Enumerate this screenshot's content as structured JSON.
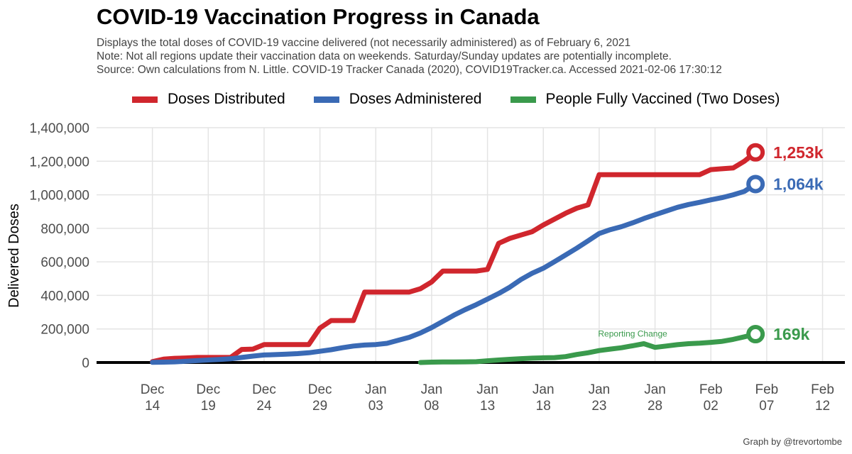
{
  "header": {
    "title": "COVID-19 Vaccination Progress in Canada",
    "subtitle_lines": [
      "Displays the total doses of COVID-19 vaccine delivered (not necessarily administered) as of February 6, 2021",
      "Note: Not all regions update their vaccination data on weekends. Saturday/Sunday updates are potentially incomplete.",
      "Source: Own calculations from N. Little. COVID-19 Tracker Canada (2020), COVID19Tracker.ca. Accessed  2021-02-06 17:30:12"
    ]
  },
  "credit": "Graph by @trevortombe",
  "colors": {
    "distributed": "#d0262d",
    "administered": "#3a6ab5",
    "fully": "#3a9a4c",
    "annotation": "#3a9a4c",
    "grid": "#e4e4e4",
    "axis_text": "#4d4d4d"
  },
  "chart_data": {
    "type": "line",
    "ylabel": "Delivered Doses",
    "ylim": [
      0,
      1400000
    ],
    "yticks": [
      0,
      200000,
      400000,
      600000,
      800000,
      1000000,
      1200000,
      1400000
    ],
    "ytick_labels": [
      "0",
      "200,000",
      "400,000",
      "600,000",
      "800,000",
      "1,000,000",
      "1,200,000",
      "1,400,000"
    ],
    "xticks": [
      {
        "date": "2020-12-14",
        "label": [
          "Dec",
          "14"
        ]
      },
      {
        "date": "2020-12-19",
        "label": [
          "Dec",
          "19"
        ]
      },
      {
        "date": "2020-12-24",
        "label": [
          "Dec",
          "24"
        ]
      },
      {
        "date": "2020-12-29",
        "label": [
          "Dec",
          "29"
        ]
      },
      {
        "date": "2021-01-03",
        "label": [
          "Jan",
          "03"
        ]
      },
      {
        "date": "2021-01-08",
        "label": [
          "Jan",
          "08"
        ]
      },
      {
        "date": "2021-01-13",
        "label": [
          "Jan",
          "13"
        ]
      },
      {
        "date": "2021-01-18",
        "label": [
          "Jan",
          "18"
        ]
      },
      {
        "date": "2021-01-23",
        "label": [
          "Jan",
          "23"
        ]
      },
      {
        "date": "2021-01-28",
        "label": [
          "Jan",
          "28"
        ]
      },
      {
        "date": "2021-02-02",
        "label": [
          "Feb",
          "02"
        ]
      },
      {
        "date": "2021-02-07",
        "label": [
          "Feb",
          "07"
        ]
      },
      {
        "date": "2021-02-12",
        "label": [
          "Feb",
          "12"
        ]
      }
    ],
    "xlim": [
      "2020-12-09",
      "2021-02-14"
    ],
    "legend_position": "top",
    "series": [
      {
        "key": "distributed",
        "name": "Doses Distributed",
        "end_label": "1,253k",
        "x": [
          "2020-12-14",
          "2020-12-15",
          "2020-12-16",
          "2020-12-17",
          "2020-12-18",
          "2020-12-19",
          "2020-12-20",
          "2020-12-21",
          "2020-12-22",
          "2020-12-23",
          "2020-12-24",
          "2020-12-25",
          "2020-12-26",
          "2020-12-27",
          "2020-12-28",
          "2020-12-29",
          "2020-12-30",
          "2020-12-31",
          "2021-01-01",
          "2021-01-02",
          "2021-01-03",
          "2021-01-04",
          "2021-01-05",
          "2021-01-06",
          "2021-01-07",
          "2021-01-08",
          "2021-01-09",
          "2021-01-10",
          "2021-01-11",
          "2021-01-12",
          "2021-01-13",
          "2021-01-14",
          "2021-01-15",
          "2021-01-16",
          "2021-01-17",
          "2021-01-18",
          "2021-01-19",
          "2021-01-20",
          "2021-01-21",
          "2021-01-22",
          "2021-01-23",
          "2021-01-24",
          "2021-01-25",
          "2021-01-26",
          "2021-01-27",
          "2021-01-28",
          "2021-01-29",
          "2021-01-30",
          "2021-01-31",
          "2021-02-01",
          "2021-02-02",
          "2021-02-03",
          "2021-02-04",
          "2021-02-05",
          "2021-02-06"
        ],
        "values": [
          5000,
          20000,
          25000,
          27000,
          30000,
          30000,
          30000,
          30000,
          78000,
          80000,
          107000,
          107000,
          107000,
          107000,
          107000,
          205000,
          250000,
          250000,
          250000,
          420000,
          420000,
          420000,
          420000,
          420000,
          440000,
          480000,
          545000,
          545000,
          545000,
          545000,
          555000,
          710000,
          740000,
          760000,
          780000,
          820000,
          855000,
          890000,
          920000,
          940000,
          1120000,
          1120000,
          1120000,
          1120000,
          1120000,
          1120000,
          1120000,
          1120000,
          1120000,
          1120000,
          1150000,
          1155000,
          1160000,
          1200000,
          1253000
        ]
      },
      {
        "key": "administered",
        "name": "Doses Administered",
        "end_label": "1,064k",
        "x": [
          "2020-12-14",
          "2020-12-15",
          "2020-12-16",
          "2020-12-17",
          "2020-12-18",
          "2020-12-19",
          "2020-12-20",
          "2020-12-21",
          "2020-12-22",
          "2020-12-23",
          "2020-12-24",
          "2020-12-25",
          "2020-12-26",
          "2020-12-27",
          "2020-12-28",
          "2020-12-29",
          "2020-12-30",
          "2020-12-31",
          "2021-01-01",
          "2021-01-02",
          "2021-01-03",
          "2021-01-04",
          "2021-01-05",
          "2021-01-06",
          "2021-01-07",
          "2021-01-08",
          "2021-01-09",
          "2021-01-10",
          "2021-01-11",
          "2021-01-12",
          "2021-01-13",
          "2021-01-14",
          "2021-01-15",
          "2021-01-16",
          "2021-01-17",
          "2021-01-18",
          "2021-01-19",
          "2021-01-20",
          "2021-01-21",
          "2021-01-22",
          "2021-01-23",
          "2021-01-24",
          "2021-01-25",
          "2021-01-26",
          "2021-01-27",
          "2021-01-28",
          "2021-01-29",
          "2021-01-30",
          "2021-01-31",
          "2021-02-01",
          "2021-02-02",
          "2021-02-03",
          "2021-02-04",
          "2021-02-05",
          "2021-02-06"
        ],
        "values": [
          1000,
          2000,
          4000,
          7000,
          11000,
          15000,
          18000,
          22000,
          30000,
          38000,
          45000,
          47000,
          50000,
          53000,
          58000,
          67000,
          76000,
          88000,
          98000,
          104000,
          107000,
          114000,
          132000,
          150000,
          176000,
          208000,
          245000,
          282000,
          315000,
          345000,
          378000,
          411000,
          449000,
          495000,
          532000,
          562000,
          601000,
          641000,
          682000,
          725000,
          769000,
          792000,
          810000,
          833000,
          858000,
          881000,
          903000,
          925000,
          942000,
          955000,
          970000,
          983000,
          1000000,
          1020000,
          1064000
        ]
      },
      {
        "key": "fully",
        "name": "People Fully Vaccined (Two Doses)",
        "end_label": "169k",
        "x": [
          "2021-01-07",
          "2021-01-08",
          "2021-01-09",
          "2021-01-10",
          "2021-01-11",
          "2021-01-12",
          "2021-01-13",
          "2021-01-14",
          "2021-01-15",
          "2021-01-16",
          "2021-01-17",
          "2021-01-18",
          "2021-01-19",
          "2021-01-20",
          "2021-01-21",
          "2021-01-22",
          "2021-01-23",
          "2021-01-24",
          "2021-01-25",
          "2021-01-26",
          "2021-01-27",
          "2021-01-28",
          "2021-01-29",
          "2021-01-30",
          "2021-01-31",
          "2021-02-01",
          "2021-02-02",
          "2021-02-03",
          "2021-02-04",
          "2021-02-05",
          "2021-02-06"
        ],
        "values": [
          0,
          2000,
          3000,
          3500,
          4000,
          4500,
          10000,
          15000,
          19000,
          23000,
          26000,
          28000,
          29000,
          35000,
          48000,
          58000,
          71000,
          80000,
          88000,
          100000,
          112000,
          90000,
          98000,
          106000,
          112000,
          115000,
          120000,
          126000,
          138000,
          153000,
          169000
        ]
      }
    ],
    "annotations": [
      {
        "text": "Reporting Change",
        "x": "2021-01-26",
        "y": 155000
      }
    ]
  }
}
